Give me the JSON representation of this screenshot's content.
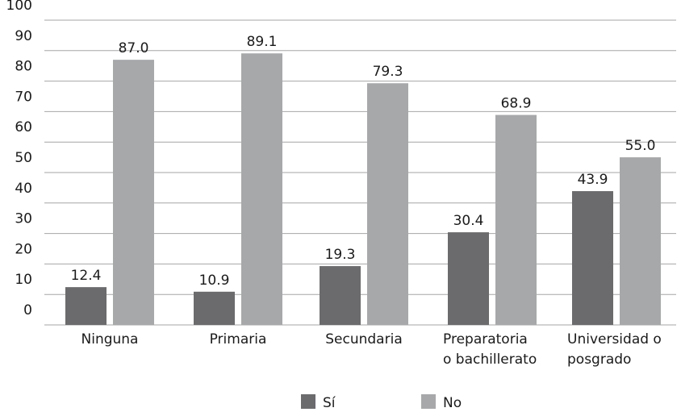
{
  "chart_data": {
    "type": "bar",
    "categories": [
      [
        "Ninguna"
      ],
      [
        "Primaria"
      ],
      [
        "Secundaria"
      ],
      [
        "Preparatoria",
        "o bachillerato"
      ],
      [
        "Universidad  o",
        "posgrado"
      ]
    ],
    "series": [
      {
        "name": "Sí",
        "color": "#6b6b6e",
        "values": [
          12.4,
          10.9,
          19.3,
          30.4,
          43.9
        ],
        "labels": [
          "12.4",
          "10.9",
          "19.3",
          "30.4",
          "43.9"
        ]
      },
      {
        "name": "No",
        "color": "#a7a8aa",
        "values": [
          87.0,
          89.1,
          79.3,
          68.9,
          55.0
        ],
        "labels": [
          "87.0",
          "89.1",
          "79.3",
          "68.9",
          "55.0"
        ]
      }
    ],
    "yticks": [
      0,
      10,
      20,
      30,
      40,
      50,
      60,
      70,
      80,
      90,
      100
    ],
    "ylim": [
      0,
      100
    ],
    "grid": true,
    "legend": "bottom-center"
  }
}
